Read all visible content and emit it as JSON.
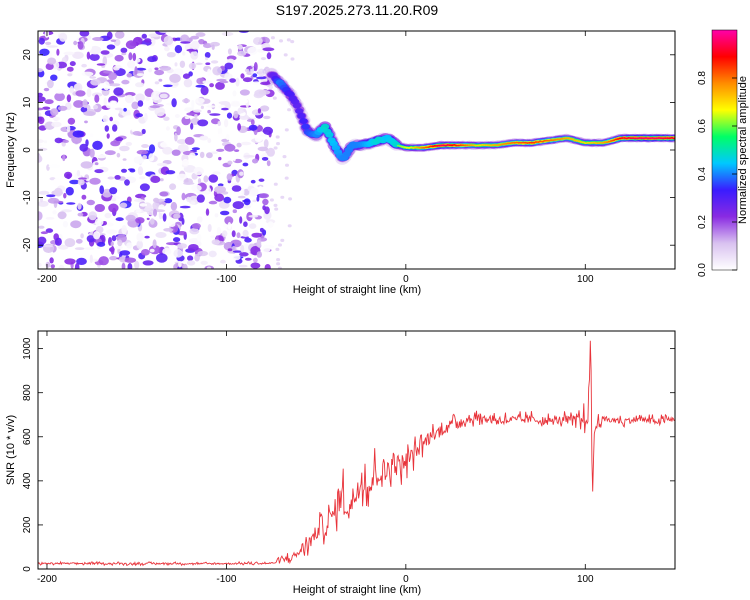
{
  "figure": {
    "title": "S197.2025.273.11.20.R09"
  },
  "chart_data": [
    {
      "type": "heatmap",
      "name": "spectrogram",
      "title": "S197.2025.273.11.20.R09",
      "xlabel": "Height of straight line (km)",
      "ylabel": "Frequency (Hz)",
      "xlim": [
        -205,
        150
      ],
      "ylim": [
        -25,
        25
      ],
      "xticks": [
        -200,
        -100,
        0,
        100
      ],
      "yticks": [
        -20,
        -10,
        0,
        10,
        20
      ],
      "colorbar": {
        "label": "Normalized spectral amplitude",
        "range": [
          0.0,
          1.0
        ],
        "ticks": [
          "0.0",
          "0.2",
          "0.4",
          "0.6",
          "0.8"
        ],
        "stops": [
          "#ffffff",
          "#d9c2f0",
          "#8a2be2",
          "#3a1cff",
          "#00c8ff",
          "#00ff66",
          "#ffff00",
          "#ff8c00",
          "#ff0000",
          "#ff00aa"
        ]
      },
      "noise_region": {
        "x": [
          -205,
          -75
        ],
        "y": [
          -25,
          25
        ]
      },
      "ridge": {
        "x": [
          -75,
          -70,
          -65,
          -60,
          -55,
          -50,
          -45,
          -40,
          -35,
          -30,
          -25,
          -20,
          -15,
          -10,
          -5,
          0,
          10,
          20,
          30,
          40,
          50,
          60,
          70,
          80,
          90,
          100,
          110,
          120,
          130,
          140,
          150
        ],
        "y": [
          16,
          14,
          12,
          9,
          4,
          3,
          5,
          1,
          -2,
          1,
          1,
          1.5,
          2,
          2.5,
          1,
          0.5,
          0.5,
          1,
          1,
          1,
          1,
          1.5,
          1.5,
          2,
          2.5,
          1.5,
          1.5,
          2.5,
          2.5,
          2.5,
          2.5
        ],
        "amplitude": [
          0.3,
          0.5,
          0.4,
          0.35,
          0.45,
          0.5,
          0.6,
          0.55,
          0.5,
          0.5,
          0.5,
          0.55,
          0.6,
          0.55,
          0.6,
          0.65,
          0.8,
          0.95,
          0.85,
          0.7,
          0.75,
          0.8,
          0.85,
          0.8,
          0.75,
          0.7,
          0.75,
          0.9,
          0.95,
          0.95,
          0.9
        ]
      }
    },
    {
      "type": "line",
      "name": "snr",
      "xlabel": "Height of straight line (km)",
      "ylabel": "SNR (10 * v/v)",
      "xlim": [
        -205,
        150
      ],
      "ylim": [
        0,
        1080
      ],
      "xticks": [
        -200,
        -100,
        0,
        100
      ],
      "yticks": [
        0,
        200,
        400,
        600,
        800,
        1000
      ],
      "color": "#e8333a",
      "series": [
        {
          "name": "SNR",
          "x": [
            -205,
            -190,
            -170,
            -150,
            -130,
            -110,
            -90,
            -75,
            -68,
            -62,
            -58,
            -54,
            -50,
            -47,
            -44,
            -41,
            -38,
            -35,
            -32,
            -29,
            -26,
            -23,
            -20,
            -17,
            -14,
            -11,
            -8,
            -5,
            -2,
            0,
            5,
            10,
            15,
            20,
            25,
            30,
            35,
            40,
            45,
            50,
            60,
            70,
            80,
            90,
            95,
            100,
            102,
            103,
            104,
            105,
            107,
            110,
            120,
            130,
            140,
            150
          ],
          "y": [
            25,
            25,
            25,
            24,
            25,
            24,
            25,
            26,
            40,
            60,
            90,
            120,
            160,
            210,
            190,
            240,
            290,
            350,
            260,
            330,
            390,
            420,
            370,
            440,
            460,
            430,
            500,
            470,
            480,
            490,
            530,
            570,
            610,
            630,
            660,
            670,
            680,
            690,
            680,
            680,
            675,
            680,
            670,
            680,
            670,
            680,
            750,
            1080,
            300,
            620,
            670,
            680,
            670,
            680,
            670,
            680
          ],
          "noise_amplitude": [
            8,
            8,
            8,
            8,
            8,
            8,
            8,
            8,
            30,
            40,
            60,
            70,
            80,
            90,
            100,
            110,
            120,
            130,
            120,
            130,
            140,
            150,
            130,
            140,
            140,
            130,
            120,
            110,
            100,
            90,
            80,
            70,
            60,
            50,
            40,
            40,
            40,
            40,
            40,
            40,
            40,
            40,
            40,
            40,
            60,
            80,
            200,
            40,
            60,
            40,
            40,
            30,
            30,
            30,
            30,
            30
          ]
        }
      ]
    }
  ]
}
